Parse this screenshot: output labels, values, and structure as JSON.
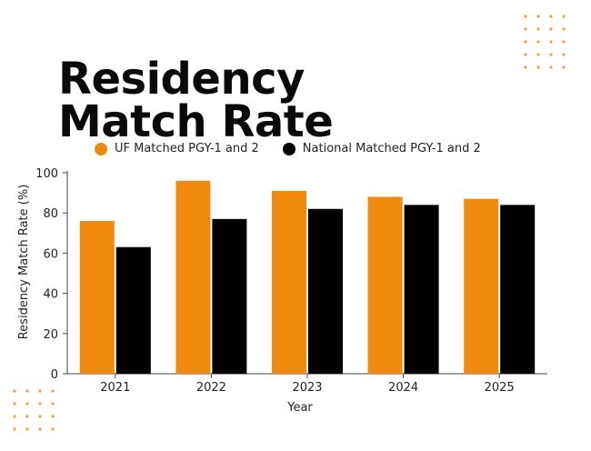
{
  "chart_data": {
    "type": "bar",
    "title": "Residency Match Rate",
    "xlabel": "Year",
    "ylabel": "Residency Match Rate  (%)",
    "categories": [
      "2021",
      "2022",
      "2023",
      "2024",
      "2025"
    ],
    "ylim": [
      0,
      100
    ],
    "yticks": [
      0,
      20,
      40,
      60,
      80,
      100
    ],
    "series": [
      {
        "name": "UF Matched PGY-1 and 2",
        "color": "#ef8a0f",
        "values": [
          76,
          96,
          91,
          88,
          87
        ]
      },
      {
        "name": "National Matched PGY-1 and 2",
        "color": "#000000",
        "values": [
          63,
          77,
          82,
          84,
          84
        ]
      }
    ],
    "legend_position": "top",
    "grid": false
  },
  "colors": {
    "accent": "#ef8a0f",
    "dots": "#f0a040"
  }
}
